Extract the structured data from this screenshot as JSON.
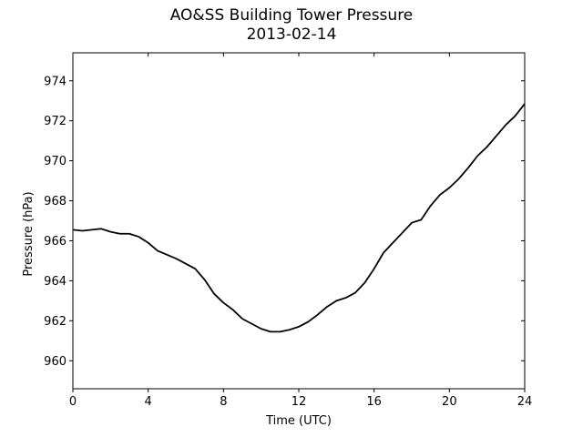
{
  "chart_data": {
    "type": "line",
    "title": "AO&SS Building Tower Pressure",
    "subtitle": "2013-02-14",
    "xlabel": "Time (UTC)",
    "ylabel": "Pressure (hPa)",
    "xlim": [
      0,
      24
    ],
    "ylim": [
      958.6,
      975.4
    ],
    "xticks": [
      0,
      4,
      8,
      12,
      16,
      20,
      24
    ],
    "yticks": [
      960,
      962,
      964,
      966,
      968,
      970,
      972,
      974
    ],
    "grid": false,
    "line_color": "#000000",
    "series": [
      {
        "x": [
          0,
          0.5,
          1,
          1.5,
          2,
          2.5,
          3,
          3.5,
          4,
          4.5,
          5,
          5.5,
          6,
          6.5,
          7,
          7.5,
          8,
          8.5,
          9,
          9.5,
          10,
          10.5,
          11,
          11.5,
          12,
          12.5,
          13,
          13.5,
          14,
          14.5,
          15,
          15.5,
          16,
          16.5,
          17,
          17.5,
          18,
          18.5,
          19,
          19.5,
          20,
          20.5,
          21,
          21.5,
          22,
          22.5,
          23,
          23.5,
          24
        ],
        "y": [
          966.55,
          966.5,
          966.55,
          966.6,
          966.45,
          966.35,
          966.35,
          966.2,
          965.9,
          965.5,
          965.3,
          965.1,
          964.85,
          964.6,
          964.05,
          963.35,
          962.9,
          962.55,
          962.1,
          961.85,
          961.6,
          961.45,
          961.45,
          961.55,
          961.7,
          961.95,
          962.3,
          962.7,
          963.0,
          963.15,
          963.4,
          963.9,
          964.6,
          965.4,
          965.9,
          966.4,
          966.9,
          967.05,
          967.75,
          968.3,
          968.65,
          969.1,
          969.65,
          970.25,
          970.7,
          971.25,
          971.8,
          972.25,
          972.85
        ]
      }
    ]
  }
}
